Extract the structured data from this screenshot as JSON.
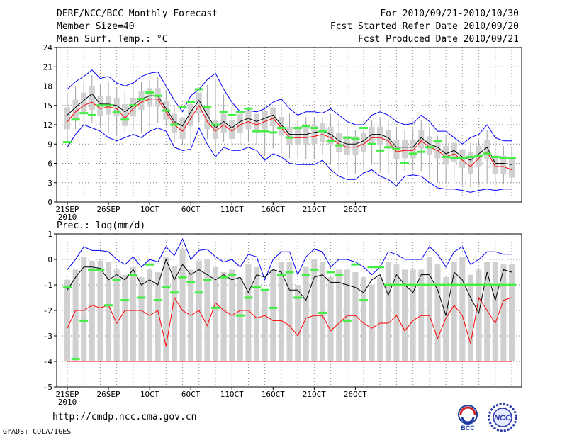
{
  "header": {
    "title": "DERF/NCC/BCC Monthly Forecast",
    "member": "Member Size=40",
    "variable": "Mean Surf. Temp.: °C",
    "period": "For 2010/09/21-2010/10/30",
    "started": "Fcst Started Refer Date 2010/09/20",
    "produced": "Fcst Produced Date 2010/09/21"
  },
  "footer": {
    "url": "http://cmdp.ncc.cma.gov.cn",
    "grads": "GrADS: COLA/IGES",
    "logo_bcc": "BCC",
    "logo_ncc": "NCC"
  },
  "colors": {
    "upper": "#0000ff",
    "mean": "#000000",
    "lower": "#ff0000",
    "obs": "#44ee44",
    "box": "#d0d0d0",
    "whisker": "#a0a0a0",
    "frame": "#000000"
  },
  "chart_data": [
    {
      "type": "line",
      "title": "Mean Surf. Temp.: °C",
      "ylim": [
        0,
        24
      ],
      "yticks": [
        "0",
        "3",
        "6",
        "9",
        "12",
        "15",
        "18",
        "21",
        "24"
      ],
      "x_labels": [
        "21SEP",
        "26SEP",
        "1OCT",
        "6OCT",
        "11OCT",
        "16OCT",
        "21OCT",
        "26OCT"
      ],
      "x_sublabel": "2010",
      "grid": true,
      "series": [
        {
          "name": "upper",
          "values": [
            17.5,
            18.7,
            19.5,
            20.5,
            19.2,
            19.5,
            18.5,
            18.0,
            18.5,
            19.5,
            20.0,
            20.2,
            18.0,
            15.8,
            14.0,
            16.5,
            17.5,
            19.0,
            20.0,
            17.5,
            15.5,
            14.0,
            14.2,
            14.0,
            14.5,
            15.5,
            16.0,
            14.5,
            13.5,
            14.0,
            14.0,
            13.8,
            14.5,
            13.5,
            12.5,
            12.0,
            12.0,
            13.5,
            14.0,
            13.5,
            12.5,
            12.0,
            12.2,
            13.5,
            12.5,
            11.0,
            11.0,
            10.0,
            9.0,
            10.0,
            10.5,
            12.0,
            10.0,
            9.5,
            9.5
          ]
        },
        {
          "name": "mean",
          "values": [
            13.5,
            14.7,
            15.8,
            16.8,
            15.2,
            15.2,
            15.0,
            14.0,
            15.0,
            16.0,
            16.5,
            16.5,
            14.5,
            12.5,
            11.8,
            14.0,
            15.8,
            13.5,
            11.5,
            12.5,
            11.5,
            12.5,
            13.0,
            12.5,
            13.0,
            13.5,
            12.0,
            10.5,
            10.5,
            10.5,
            10.8,
            11.0,
            10.5,
            9.5,
            9.0,
            9.0,
            9.5,
            10.5,
            10.5,
            10.0,
            8.5,
            8.5,
            8.5,
            10.0,
            9.0,
            8.5,
            7.5,
            8.0,
            7.0,
            6.5,
            7.5,
            8.5,
            6.0,
            6.0,
            5.8
          ]
        },
        {
          "name": "lower",
          "values": [
            12.5,
            14.0,
            15.0,
            15.5,
            14.5,
            14.8,
            14.5,
            13.0,
            14.5,
            15.5,
            16.0,
            16.0,
            14.0,
            12.0,
            11.0,
            13.0,
            15.0,
            12.5,
            11.0,
            12.0,
            11.0,
            12.0,
            12.5,
            12.0,
            12.5,
            13.0,
            11.5,
            10.0,
            10.0,
            10.0,
            10.2,
            10.5,
            10.0,
            9.0,
            8.5,
            8.5,
            9.0,
            10.0,
            10.0,
            9.5,
            7.8,
            8.0,
            8.0,
            9.5,
            8.5,
            8.0,
            7.0,
            7.5,
            6.5,
            5.5,
            6.8,
            7.8,
            5.5,
            5.5,
            5.0
          ]
        },
        {
          "name": "lowest",
          "values": [
            8.5,
            10.5,
            12.0,
            11.5,
            11.0,
            10.0,
            9.5,
            10.0,
            10.5,
            10.0,
            11.0,
            11.5,
            11.0,
            8.5,
            8.0,
            8.2,
            11.5,
            9.0,
            7.0,
            8.5,
            8.0,
            8.0,
            8.5,
            8.0,
            6.5,
            7.5,
            7.0,
            6.0,
            5.8,
            5.8,
            5.8,
            6.5,
            5.0,
            4.0,
            3.5,
            3.5,
            4.5,
            5.0,
            4.0,
            3.5,
            2.5,
            4.0,
            4.2,
            4.0,
            3.0,
            2.2,
            2.0,
            2.0,
            1.8,
            1.5,
            1.8,
            2.0,
            1.8,
            2.0,
            2.0
          ]
        },
        {
          "name": "observed",
          "values": [
            9.3,
            12.8,
            13.8,
            13.5,
            15.0,
            15.0,
            14.0,
            12.8,
            15.0,
            16.0,
            17.0,
            16.5,
            14.2,
            12.0,
            14.8,
            15.5,
            17.5,
            14.8,
            12.0,
            14.0,
            13.5,
            14.0,
            14.5,
            11.0,
            11.0,
            10.8,
            11.5,
            10.0,
            11.5,
            11.8,
            11.5,
            11.0,
            9.5,
            8.8,
            10.0,
            9.8,
            11.5,
            9.0,
            8.0,
            8.5,
            8.2,
            6.0,
            7.5,
            7.8,
            8.5,
            9.5,
            7.0,
            6.8,
            6.8,
            7.0,
            7.2,
            7.5,
            7.0,
            6.8,
            6.8
          ]
        }
      ]
    },
    {
      "type": "line",
      "title": "Prec.: log(mm/d)",
      "ylim": [
        -5,
        1
      ],
      "yticks": [
        "-5",
        "-4",
        "-3",
        "-2",
        "-1",
        "0",
        "1"
      ],
      "x_labels": [
        "21SEP",
        "26SEP",
        "1OCT",
        "6OCT",
        "11OCT",
        "16OCT",
        "21OCT",
        "26OCT"
      ],
      "x_sublabel": "2010",
      "grid": true,
      "series": [
        {
          "name": "upper",
          "values": [
            -0.4,
            0.0,
            0.5,
            0.35,
            0.35,
            0.3,
            0.0,
            -0.2,
            0.1,
            -0.3,
            0.0,
            -0.1,
            0.5,
            0.15,
            0.8,
            0.0,
            0.35,
            0.4,
            0.1,
            -0.1,
            0.0,
            -0.3,
            0.2,
            0.1,
            -0.8,
            0.0,
            0.3,
            0.3,
            -0.6,
            0.1,
            0.4,
            0.3,
            -0.3,
            0.0,
            0.0,
            -0.1,
            -0.3,
            -0.6,
            -0.3,
            0.3,
            0.2,
            0.0,
            0.0,
            0.0,
            0.5,
            0.2,
            -0.3,
            0.3,
            0.5,
            -0.2,
            0.0,
            0.3,
            0.3,
            0.2,
            0.2
          ]
        },
        {
          "name": "mean",
          "values": [
            -1.2,
            -0.7,
            -0.3,
            -0.3,
            -0.35,
            -0.8,
            -0.6,
            -0.8,
            -0.4,
            -1.0,
            -0.8,
            -1.0,
            0.0,
            -0.8,
            -0.2,
            -0.6,
            -0.4,
            -0.6,
            -0.8,
            -0.6,
            -0.8,
            -0.7,
            -1.3,
            -0.6,
            -0.7,
            -0.4,
            -0.5,
            -1.2,
            -1.2,
            -1.6,
            -0.7,
            -0.6,
            -0.9,
            -0.9,
            -1.0,
            -1.1,
            -1.3,
            -0.8,
            -0.6,
            -1.4,
            -0.6,
            -1.0,
            -1.3,
            -0.6,
            -0.6,
            -1.2,
            -2.2,
            -0.5,
            -0.8,
            -1.5,
            -2.1,
            -0.5,
            -1.6,
            -0.4,
            -0.5
          ]
        },
        {
          "name": "lower",
          "values": [
            -2.7,
            -2.0,
            -2.0,
            -1.8,
            -1.9,
            -1.8,
            -2.5,
            -2.0,
            -2.0,
            -2.0,
            -2.2,
            -2.0,
            -3.4,
            -1.5,
            -2.0,
            -2.2,
            -2.0,
            -2.6,
            -1.7,
            -2.0,
            -2.2,
            -2.0,
            -2.0,
            -2.3,
            -2.2,
            -2.4,
            -2.4,
            -2.6,
            -3.0,
            -2.3,
            -2.2,
            -2.2,
            -2.8,
            -2.5,
            -2.2,
            -2.2,
            -2.5,
            -2.7,
            -2.5,
            -2.5,
            -2.2,
            -2.8,
            -2.4,
            -2.2,
            -2.2,
            -3.1,
            -2.3,
            -1.8,
            -2.2,
            -3.3,
            -1.5,
            -2.0,
            -2.5,
            -1.6,
            -1.5
          ]
        },
        {
          "name": "lowest",
          "values": [
            -4,
            -4,
            -4,
            -4,
            -4,
            -4,
            -4,
            -4,
            -4,
            -4,
            -4,
            -4,
            -4,
            -4,
            -4,
            -4,
            -4,
            -4,
            -4,
            -4,
            -4,
            -4,
            -4,
            -4,
            -4,
            -4,
            -4,
            -4,
            -4,
            -4,
            -4,
            -4,
            -4,
            -4,
            -4,
            -4,
            -4,
            -4,
            -4,
            -4,
            -4,
            -4,
            -4,
            -4,
            -4,
            -4,
            -4,
            -4,
            -4,
            -4,
            -4,
            -4,
            -4,
            -4,
            -4
          ]
        },
        {
          "name": "observed",
          "values": [
            -1.1,
            -3.9,
            -2.4,
            -0.4,
            -0.4,
            -1.8,
            -0.8,
            -1.6,
            -0.6,
            -1.5,
            -0.2,
            -1.6,
            -1.1,
            -1.3,
            -0.7,
            -0.9,
            -1.3,
            -0.8,
            -1.9,
            -0.7,
            -0.6,
            -2.2,
            -1.5,
            -1.1,
            -1.2,
            -1.9,
            -0.6,
            -0.5,
            -1.5,
            -0.6,
            -0.4,
            -2.1,
            -0.5,
            -0.6,
            -2.4,
            -0.2,
            -1.6,
            -0.3,
            -0.3,
            -1.0,
            -1.0,
            -1.0,
            -1.0,
            -1.0,
            -1.0,
            -1.0,
            -1.0,
            -1.0,
            -1.0,
            -1.0,
            -1.0,
            -1.0,
            -1.0,
            -1.0,
            -1.0
          ]
        }
      ]
    }
  ]
}
